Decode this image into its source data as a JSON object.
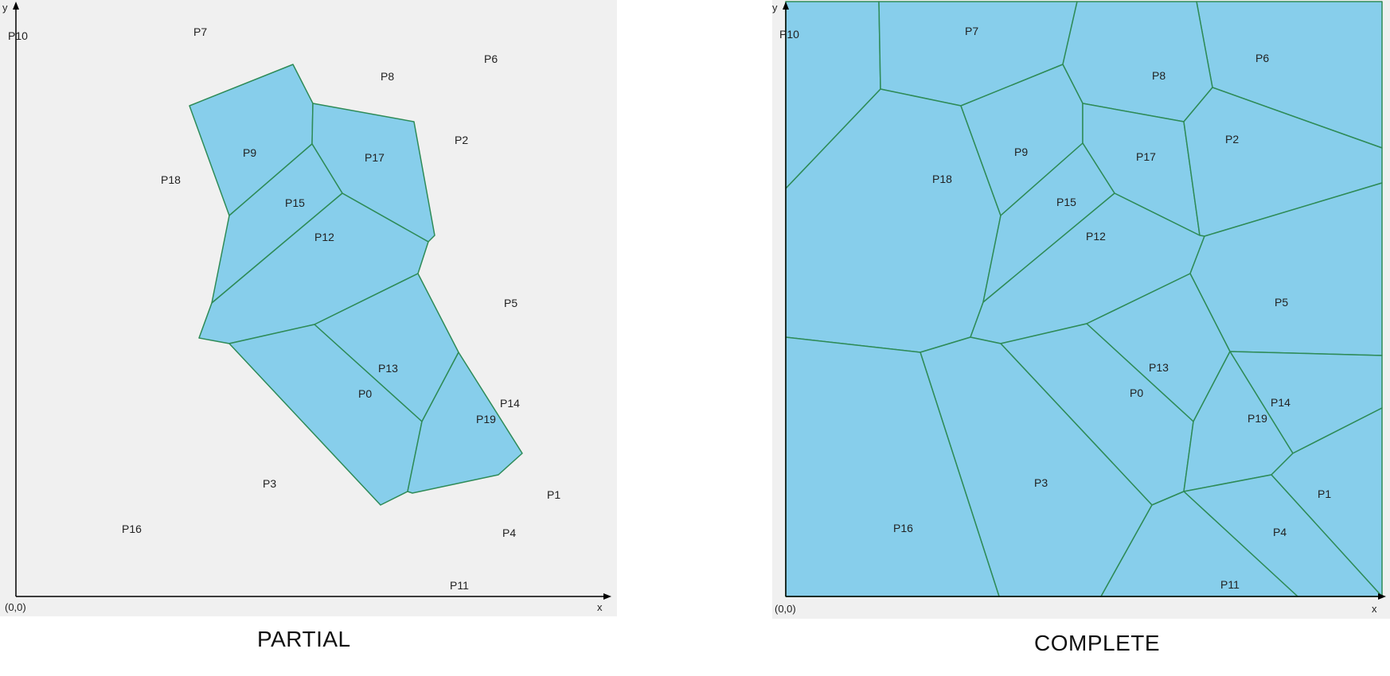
{
  "colors": {
    "cell_fill": "#87CEEB",
    "cell_stroke": "#2E8B57",
    "axis": "#000000",
    "panel_bg": "#f0f0f0"
  },
  "partial": {
    "caption": "PARTIAL",
    "origin_label": "(0,0)",
    "x_label": "x",
    "y_label": "y",
    "points": [
      "P10",
      "P7",
      "P6",
      "P8",
      "P2",
      "P9",
      "P17",
      "P18",
      "P15",
      "P12",
      "P5",
      "P13",
      "P0",
      "P14",
      "P19",
      "P3",
      "P1",
      "P16",
      "P4",
      "P11"
    ]
  },
  "complete": {
    "caption": "COMPLETE",
    "origin_label": "(0,0)",
    "x_label": "x",
    "y_label": "y",
    "points": [
      "P10",
      "P7",
      "P6",
      "P8",
      "P2",
      "P9",
      "P17",
      "P18",
      "P15",
      "P12",
      "P5",
      "P13",
      "P0",
      "P14",
      "P19",
      "P3",
      "P1",
      "P16",
      "P4",
      "P11"
    ]
  }
}
